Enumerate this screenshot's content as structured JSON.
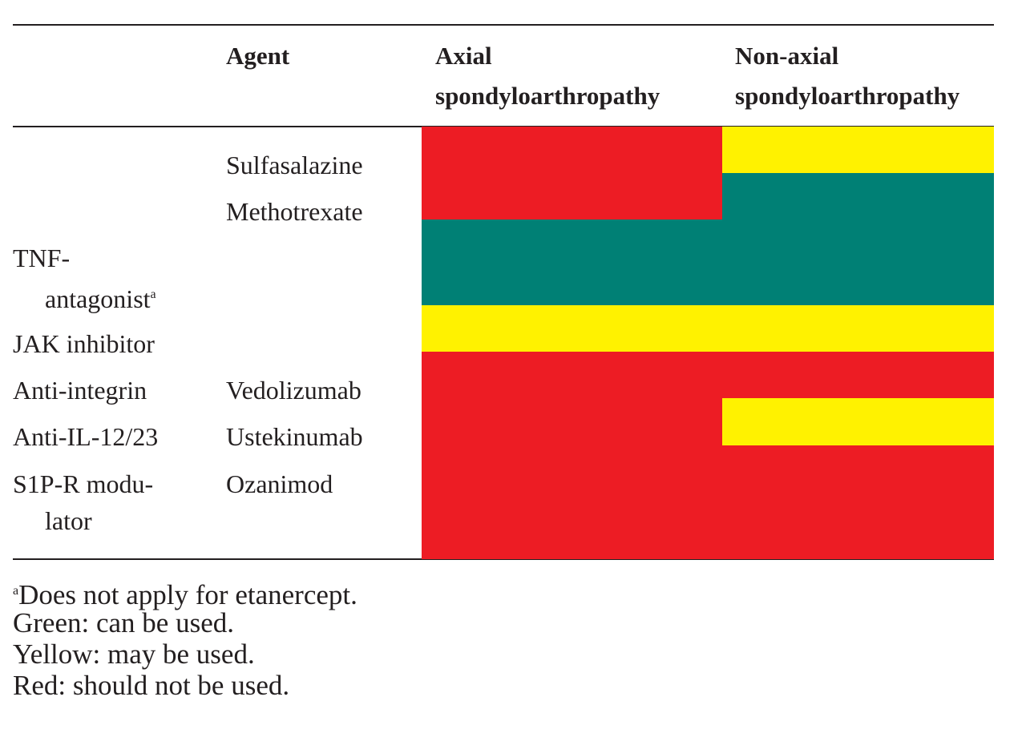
{
  "table": {
    "header": [
      [
        "Agent"
      ],
      [
        "Axial",
        "spondyloarthropathy"
      ],
      [
        "Non-axial",
        "spondyloarthropathy"
      ]
    ],
    "rows": [
      {
        "agent": "Sulfasalazine",
        "axial_color": "#ed1c24",
        "non_axial_color": "#fff200"
      },
      {
        "agent": "Methotrexate",
        "axial_color": "#ed1c24",
        "non_axial_color": "#008075"
      },
      {
        "label": [
          "TNF-",
          "antagonist"
        ],
        "note_marker": "a",
        "axial_color": "#008075",
        "non_axial_color": "#008075"
      },
      {
        "label": [
          "JAK inhibitor"
        ],
        "axial_color": "#fff200",
        "non_axial_color": "#fff200"
      },
      {
        "label": [
          "Anti-integrin"
        ],
        "agent": "Vedolizumab",
        "axial_color": "#ed1c24",
        "non_axial_color": "#ed1c24"
      },
      {
        "label": [
          "Anti-IL-12/23"
        ],
        "agent": "Ustekinumab",
        "axial_color": "#ed1c24",
        "non_axial_color": "#fff200"
      },
      {
        "label": [
          "S1P-R modu-",
          "lator"
        ],
        "agent": "Ozanimod",
        "axial_color": "#ed1c24",
        "non_axial_color": "#ed1c24"
      }
    ]
  },
  "footnotes": {
    "marker": "a",
    "note": "Does not apply for etanercept.",
    "legend": [
      "Green: can be used.",
      "Yellow: may be used.",
      "Red: should not be used."
    ]
  }
}
